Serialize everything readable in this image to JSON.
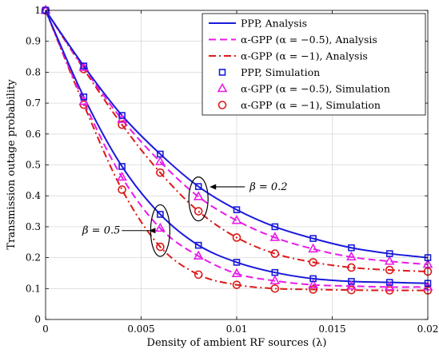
{
  "chart_data": {
    "type": "line",
    "title": "",
    "xlabel": "Density of ambient RF sources (λ)",
    "ylabel": "Transmission outage probability",
    "xlim": [
      0,
      0.02
    ],
    "ylim": [
      0,
      1
    ],
    "xticks": [
      0,
      0.005,
      0.01,
      0.015,
      0.02
    ],
    "xtick_labels": [
      "0",
      "0.005",
      "0.01",
      "0.015",
      "0.02"
    ],
    "yticks": [
      0,
      0.1,
      0.2,
      0.3,
      0.4,
      0.5,
      0.6,
      0.7,
      0.8,
      0.9,
      1
    ],
    "ytick_labels": [
      "0",
      "0.1",
      "0.2",
      "0.3",
      "0.4",
      "0.5",
      "0.6",
      "0.7",
      "0.8",
      "0.9",
      "1"
    ],
    "grid": true,
    "legend_position": "top-right",
    "x": [
      0,
      0.002,
      0.004,
      0.006,
      0.008,
      0.01,
      0.012,
      0.014,
      0.016,
      0.018,
      0.02
    ],
    "groups": [
      {
        "beta_label": "β = 0.2",
        "series": {
          "ppp": [
            1.0,
            0.82,
            0.66,
            0.535,
            0.43,
            0.355,
            0.3,
            0.262,
            0.232,
            0.213,
            0.2
          ],
          "gpp_05": [
            1.0,
            0.815,
            0.647,
            0.51,
            0.397,
            0.32,
            0.265,
            0.228,
            0.202,
            0.188,
            0.178
          ],
          "gpp_1": [
            1.0,
            0.81,
            0.63,
            0.475,
            0.35,
            0.265,
            0.213,
            0.185,
            0.168,
            0.16,
            0.155
          ]
        }
      },
      {
        "beta_label": "β = 0.5",
        "series": {
          "ppp": [
            1.0,
            0.72,
            0.495,
            0.34,
            0.24,
            0.185,
            0.152,
            0.132,
            0.123,
            0.12,
            0.117
          ],
          "gpp_05": [
            1.0,
            0.705,
            0.46,
            0.295,
            0.205,
            0.148,
            0.125,
            0.112,
            0.108,
            0.105,
            0.105
          ],
          "gpp_1": [
            1.0,
            0.695,
            0.42,
            0.235,
            0.145,
            0.112,
            0.1,
            0.097,
            0.095,
            0.094,
            0.094
          ]
        }
      }
    ],
    "series_styles": {
      "ppp": {
        "color": "#1a1adc",
        "dash": "",
        "marker": "square"
      },
      "gpp_05": {
        "color": "#e81ce8",
        "dash": "9,5",
        "marker": "triangle"
      },
      "gpp_1": {
        "color": "#dc1a1a",
        "dash": "9,4,2,4",
        "marker": "circle"
      }
    },
    "legend": [
      {
        "label": "PPP, Analysis",
        "style": "ppp",
        "kind": "line"
      },
      {
        "label": "α-GPP (α = −0.5), Analysis",
        "style": "gpp_05",
        "kind": "line"
      },
      {
        "label": "α-GPP (α = −1), Analysis",
        "style": "gpp_1",
        "kind": "line"
      },
      {
        "label": "PPP, Simulation",
        "style": "ppp",
        "kind": "marker"
      },
      {
        "label": "α-GPP (α = −0.5), Simulation",
        "style": "gpp_05",
        "kind": "marker"
      },
      {
        "label": "α-GPP (α = −1), Simulation",
        "style": "gpp_1",
        "kind": "marker"
      }
    ],
    "annotations": [
      {
        "text": "β = 0.2",
        "group": 0,
        "at_x": 0.008
      },
      {
        "text": "β = 0.5",
        "group": 1,
        "at_x": 0.006
      }
    ]
  }
}
